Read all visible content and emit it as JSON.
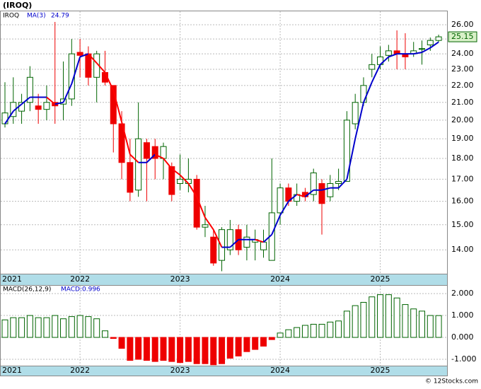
{
  "chart_data": [
    {
      "type": "candlestick",
      "title": "(IROQ)",
      "symbol": "IROQ",
      "log": true,
      "grid": true,
      "categories": [
        "2021",
        null,
        null,
        null,
        null,
        null,
        null,
        null,
        null,
        "2022",
        null,
        null,
        null,
        null,
        null,
        null,
        null,
        null,
        null,
        null,
        null,
        "2023",
        null,
        null,
        null,
        null,
        null,
        null,
        null,
        null,
        null,
        null,
        null,
        "2024",
        null,
        null,
        null,
        null,
        null,
        null,
        null,
        null,
        null,
        null,
        null,
        "2025",
        null,
        null,
        null,
        null,
        null,
        null,
        null
      ],
      "open": [
        19.8,
        20.2,
        20.5,
        21.0,
        20.8,
        20.6,
        21.0,
        20.9,
        21.2,
        24.1,
        24.0,
        22.5,
        22.8,
        22.0,
        19.8,
        17.8,
        16.5,
        18.8,
        18.6,
        18.0,
        17.6,
        16.8,
        16.8,
        17.0,
        14.9,
        14.5,
        13.6,
        14.0,
        14.8,
        14.1,
        14.3,
        14.0,
        13.6,
        15.5,
        16.6,
        16.0,
        16.4,
        16.3,
        16.8,
        16.2,
        16.8,
        16.9,
        19.8,
        21.0,
        23.0,
        23.3,
        23.9,
        24.2,
        24.0,
        24.0,
        24.3,
        24.6,
        24.9
      ],
      "high": [
        22.2,
        22.5,
        21.5,
        23.2,
        21.5,
        22.0,
        26.2,
        23.5,
        25.0,
        25.0,
        24.5,
        24.2,
        24.2,
        22.0,
        20.5,
        19.0,
        21.0,
        19.0,
        19.0,
        18.8,
        17.8,
        18.2,
        18.0,
        17.2,
        15.8,
        14.8,
        14.9,
        15.2,
        15.0,
        15.0,
        14.8,
        14.8,
        18.0,
        16.8,
        16.8,
        16.8,
        16.6,
        17.5,
        17.0,
        17.2,
        17.5,
        20.5,
        21.5,
        22.5,
        24.0,
        24.5,
        24.6,
        25.6,
        25.4,
        24.8,
        24.9,
        25.1,
        25.3
      ],
      "low": [
        19.6,
        19.8,
        19.8,
        20.5,
        19.8,
        20.0,
        19.8,
        20.0,
        20.8,
        22.5,
        22.0,
        21.0,
        22.0,
        18.3,
        17.0,
        16.0,
        16.2,
        16.0,
        17.0,
        17.0,
        16.0,
        16.5,
        16.4,
        14.8,
        14.5,
        13.4,
        13.2,
        13.8,
        13.8,
        13.6,
        13.6,
        13.7,
        13.6,
        15.0,
        15.8,
        15.8,
        16.0,
        16.0,
        14.6,
        16.0,
        16.5,
        16.9,
        19.5,
        20.8,
        22.5,
        23.0,
        23.5,
        23.0,
        23.0,
        23.8,
        23.3,
        24.2,
        24.8
      ],
      "close": [
        20.4,
        21.0,
        21.0,
        22.5,
        20.6,
        21.0,
        20.8,
        21.2,
        24.0,
        23.9,
        22.5,
        24.0,
        22.2,
        19.8,
        17.8,
        16.4,
        19.0,
        18.0,
        18.0,
        18.6,
        16.3,
        17.0,
        17.0,
        14.9,
        15.0,
        13.5,
        14.8,
        14.8,
        14.0,
        14.5,
        14.4,
        14.3,
        15.5,
        16.6,
        16.0,
        16.3,
        16.2,
        17.3,
        15.9,
        16.8,
        16.9,
        20.0,
        21.0,
        22.0,
        23.3,
        23.8,
        24.2,
        24.0,
        23.8,
        24.2,
        24.35,
        24.9,
        25.15
      ],
      "up_color": "#006400",
      "down_color": "#ee0000",
      "series": [
        {
          "name": "MA(3)",
          "color": "#0000cc",
          "down_color": "#ff0000",
          "values": [
            19.8,
            20.5,
            20.9,
            21.3,
            21.3,
            21.3,
            20.9,
            21.0,
            22.1,
            23.8,
            24.0,
            23.4,
            22.8,
            21.7,
            19.9,
            18.2,
            17.8,
            17.8,
            18.2,
            18.0,
            17.5,
            17.2,
            16.8,
            16.2,
            15.3,
            14.8,
            14.1,
            14.1,
            14.4,
            14.4,
            14.4,
            14.3,
            14.6,
            15.4,
            16.0,
            16.3,
            16.2,
            16.5,
            16.5,
            16.6,
            16.6,
            17.0,
            19.0,
            21.0,
            22.2,
            23.3,
            23.8,
            24.0,
            24.0,
            24.0,
            24.1,
            24.4,
            24.79
          ]
        }
      ],
      "ylim": [
        13.11,
        27.03
      ],
      "yticks": [
        {
          "value": 14,
          "label": "14.00"
        },
        {
          "value": 15,
          "label": "15.00"
        },
        {
          "value": 16,
          "label": "16.00"
        },
        {
          "value": 17,
          "label": "17.00"
        },
        {
          "value": 18,
          "label": "18.00"
        },
        {
          "value": 19,
          "label": "19.00"
        },
        {
          "value": 20,
          "label": "20.00"
        },
        {
          "value": 21,
          "label": "21.00"
        },
        {
          "value": 22,
          "label": "22.00"
        },
        {
          "value": 23,
          "label": "23.00"
        },
        {
          "value": 24,
          "label": "24.00"
        },
        {
          "value": 25,
          "label": "25.00"
        },
        {
          "value": 26,
          "label": "26.00"
        }
      ]
    },
    {
      "type": "bar",
      "title": "MACD(26,12,9)",
      "macd_label": "MACD:0.996",
      "grid": true,
      "categories": [
        "2021",
        null,
        null,
        null,
        null,
        null,
        null,
        null,
        null,
        "2022",
        null,
        null,
        null,
        null,
        null,
        null,
        null,
        null,
        null,
        null,
        null,
        "2023",
        null,
        null,
        null,
        null,
        null,
        null,
        null,
        null,
        null,
        null,
        null,
        "2024",
        null,
        null,
        null,
        null,
        null,
        null,
        null,
        null,
        null,
        null,
        null,
        "2025",
        null,
        null,
        null,
        null,
        null,
        null,
        null
      ],
      "values": [
        0.8,
        0.9,
        0.9,
        1.0,
        0.9,
        0.9,
        1.0,
        0.85,
        0.95,
        1.0,
        0.95,
        0.85,
        0.3,
        -0.05,
        -0.5,
        -1.05,
        -1.0,
        -1.05,
        -1.1,
        -1.05,
        -1.1,
        -1.15,
        -1.1,
        -1.2,
        -1.2,
        -1.25,
        -1.2,
        -0.95,
        -0.85,
        -0.65,
        -0.55,
        -0.4,
        -0.1,
        0.2,
        0.35,
        0.45,
        0.55,
        0.6,
        0.6,
        0.7,
        0.75,
        1.2,
        1.45,
        1.6,
        1.85,
        1.95,
        1.95,
        1.8,
        1.5,
        1.3,
        1.2,
        1.0,
        0.996
      ],
      "up_color": "#006400",
      "down_color": "#ee0000",
      "ylim": [
        -1.29,
        2.39
      ],
      "yticks": [
        {
          "value": 2,
          "label": "2.000"
        },
        {
          "value": 1,
          "label": "1.000"
        },
        {
          "value": 0,
          "label": "0.000"
        },
        {
          "value": -1,
          "label": "-1.000"
        }
      ]
    }
  ],
  "footer": "© 12Stocks.com"
}
